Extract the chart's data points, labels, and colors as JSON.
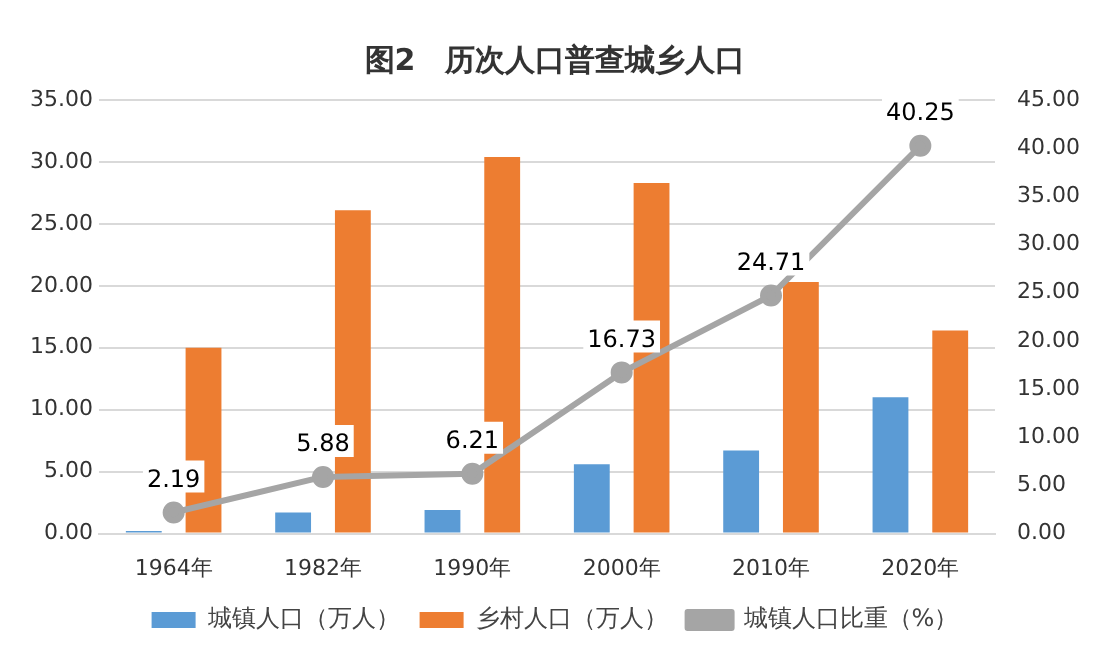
{
  "chart_data": {
    "type": "bar",
    "title": "图2　历次人口普查城乡人口",
    "categories": [
      "1964年",
      "1982年",
      "1990年",
      "2000年",
      "2010年",
      "2020年"
    ],
    "series": [
      {
        "name": "城镇人口（万人）",
        "color": "#5b9bd5",
        "values": [
          0.2,
          1.7,
          1.9,
          5.6,
          6.7,
          11.0
        ]
      },
      {
        "name": "乡村人口（万人）",
        "color": "#ed7d31",
        "values": [
          15.0,
          26.1,
          30.4,
          28.3,
          20.3,
          16.4
        ]
      },
      {
        "name": "城镇人口比重（%）",
        "type": "line",
        "axis": "y2",
        "color": "#a5a5a5",
        "marker": "circle",
        "values": [
          2.19,
          5.88,
          6.21,
          16.73,
          24.71,
          40.25
        ],
        "value_labels": [
          "2.19",
          "5.88",
          "6.21",
          "16.73",
          "24.71",
          "40.25"
        ]
      }
    ],
    "ylim": [
      0,
      35
    ],
    "yticks": [
      {
        "value": 0,
        "label": "0.00"
      },
      {
        "value": 5,
        "label": "5.00"
      },
      {
        "value": 10,
        "label": "10.00"
      },
      {
        "value": 15,
        "label": "15.00"
      },
      {
        "value": 20,
        "label": "20.00"
      },
      {
        "value": 25,
        "label": "25.00"
      },
      {
        "value": 30,
        "label": "30.00"
      },
      {
        "value": 35,
        "label": "35.00"
      }
    ],
    "y2lim": [
      0,
      45
    ],
    "y2ticks": [
      {
        "value": 0,
        "label": "0.00"
      },
      {
        "value": 5,
        "label": "5.00"
      },
      {
        "value": 10,
        "label": "10.00"
      },
      {
        "value": 15,
        "label": "15.00"
      },
      {
        "value": 20,
        "label": "20.00"
      },
      {
        "value": 25,
        "label": "25.00"
      },
      {
        "value": 30,
        "label": "30.00"
      },
      {
        "value": 35,
        "label": "35.00"
      },
      {
        "value": 40,
        "label": "40.00"
      },
      {
        "value": 45,
        "label": "45.00"
      }
    ],
    "grid": "y",
    "legend": "bottom"
  }
}
